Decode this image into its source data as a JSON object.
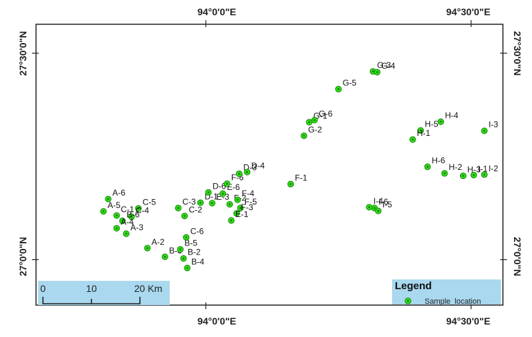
{
  "map": {
    "top_axis": [
      {
        "label": "94°0'0\"E",
        "lon": 94.0
      },
      {
        "label": "94°30'0\"E",
        "lon": 94.5
      }
    ],
    "bottom_axis": [
      {
        "label": "94°0'0\"E",
        "lon": 94.0
      },
      {
        "label": "94°30'0\"E",
        "lon": 94.5
      }
    ],
    "left_axis": [
      {
        "label": "27°30'0\"N",
        "lat": 27.5
      },
      {
        "label": "27°0'0\"N",
        "lat": 27.0
      }
    ],
    "right_axis": [
      {
        "label": "27°30'0\"N",
        "lat": 27.5
      },
      {
        "label": "27°0'0\"N",
        "lat": 27.0
      }
    ],
    "extent": {
      "lon_min": 93.68,
      "lon_max": 94.56,
      "lat_min": 26.89,
      "lat_max": 27.57
    },
    "point_color": "#2fdc14",
    "point_ring_color": "#1a8a10",
    "legend": {
      "title": "Legend",
      "item_label": "Sample_location",
      "bg_color": "#a9d8ef"
    },
    "scale_bar": {
      "ticks": [
        "0",
        "10",
        "20 Km"
      ],
      "bg_color": "#a9d8ef"
    },
    "samples": [
      {
        "id": "A-6",
        "lon": 93.816,
        "lat": 27.147
      },
      {
        "id": "A-5",
        "lon": 93.807,
        "lat": 27.117
      },
      {
        "id": "C-1",
        "lon": 93.832,
        "lat": 27.107
      },
      {
        "id": "C-5",
        "lon": 93.873,
        "lat": 27.124
      },
      {
        "id": "C-4",
        "lon": 93.86,
        "lat": 27.104
      },
      {
        "id": "B-6",
        "lon": 93.843,
        "lat": 27.094
      },
      {
        "id": "A-4",
        "lon": 93.832,
        "lat": 27.076
      },
      {
        "id": "A-3",
        "lon": 93.85,
        "lat": 27.063
      },
      {
        "id": "A-2",
        "lon": 93.89,
        "lat": 27.028
      },
      {
        "id": "B-3",
        "lon": 93.923,
        "lat": 27.007
      },
      {
        "id": "B-5",
        "lon": 93.952,
        "lat": 27.025
      },
      {
        "id": "C-6",
        "lon": 93.963,
        "lat": 27.054
      },
      {
        "id": "C-3",
        "lon": 93.948,
        "lat": 27.125
      },
      {
        "id": "C-2",
        "lon": 93.96,
        "lat": 27.106
      },
      {
        "id": "D-1",
        "lon": 93.99,
        "lat": 27.138
      },
      {
        "id": "D-6",
        "lon": 94.005,
        "lat": 27.163
      },
      {
        "id": "E-3",
        "lon": 94.012,
        "lat": 27.137
      },
      {
        "id": "E-6",
        "lon": 94.032,
        "lat": 27.16
      },
      {
        "id": "F-6",
        "lon": 94.04,
        "lat": 27.184
      },
      {
        "id": "F-2",
        "lon": 94.045,
        "lat": 27.134
      },
      {
        "id": "F-4",
        "lon": 94.06,
        "lat": 27.145
      },
      {
        "id": "F-5",
        "lon": 94.065,
        "lat": 27.125
      },
      {
        "id": "F-3",
        "lon": 94.058,
        "lat": 27.112
      },
      {
        "id": "E-1",
        "lon": 94.048,
        "lat": 27.095
      },
      {
        "id": "D-3",
        "lon": 94.063,
        "lat": 27.208
      },
      {
        "id": "D-4",
        "lon": 94.078,
        "lat": 27.212
      },
      {
        "id": "B-2",
        "lon": 93.958,
        "lat": 27.003
      },
      {
        "id": "B-4",
        "lon": 93.965,
        "lat": 26.98
      },
      {
        "id": "F-1",
        "lon": 94.16,
        "lat": 27.183
      },
      {
        "id": "G-1",
        "lon": 94.195,
        "lat": 27.333
      },
      {
        "id": "G-6",
        "lon": 94.205,
        "lat": 27.338
      },
      {
        "id": "G-2",
        "lon": 94.185,
        "lat": 27.3
      },
      {
        "id": "G-5",
        "lon": 94.25,
        "lat": 27.413
      },
      {
        "id": "G-3",
        "lon": 94.315,
        "lat": 27.456
      },
      {
        "id": "G-4",
        "lon": 94.323,
        "lat": 27.454
      },
      {
        "id": "H-4",
        "lon": 94.443,
        "lat": 27.334
      },
      {
        "id": "H-5",
        "lon": 94.405,
        "lat": 27.313
      },
      {
        "id": "H-1",
        "lon": 94.39,
        "lat": 27.291
      },
      {
        "id": "I-3",
        "lon": 94.525,
        "lat": 27.312
      },
      {
        "id": "H-6",
        "lon": 94.418,
        "lat": 27.225
      },
      {
        "id": "H-3",
        "lon": 94.485,
        "lat": 27.203
      },
      {
        "id": "H-2",
        "lon": 94.45,
        "lat": 27.209
      },
      {
        "id": "I-1",
        "lon": 94.505,
        "lat": 27.205
      },
      {
        "id": "I-2",
        "lon": 94.525,
        "lat": 27.206
      },
      {
        "id": "I-6",
        "lon": 94.318,
        "lat": 27.125
      },
      {
        "id": "I-4",
        "lon": 94.308,
        "lat": 27.127
      },
      {
        "id": "I-5",
        "lon": 94.325,
        "lat": 27.118
      }
    ]
  }
}
